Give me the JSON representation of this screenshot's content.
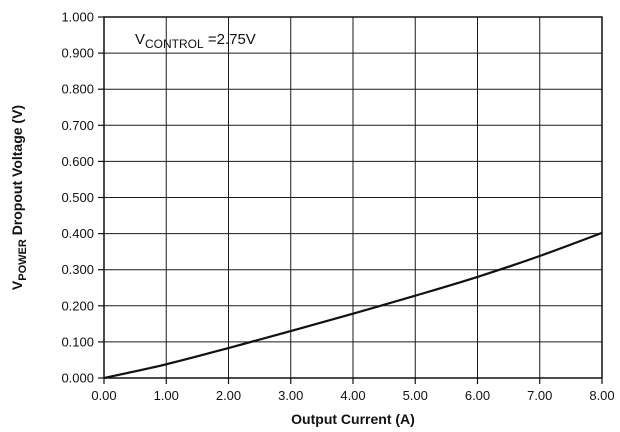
{
  "chart_data": {
    "type": "line",
    "title": "",
    "xlabel": "Output Current (A)",
    "ylabel": {
      "prefix": "V",
      "subscript": "POWER",
      "suffix": " Dropout Voltage (V)"
    },
    "annotation": {
      "prefix": "V",
      "subscript": "CONTROL",
      "suffix": " =2.75V"
    },
    "xlim": [
      0,
      8
    ],
    "ylim": [
      0,
      1.0
    ],
    "x_ticks": [
      "0.00",
      "1.00",
      "2.00",
      "3.00",
      "4.00",
      "5.00",
      "6.00",
      "7.00",
      "8.00"
    ],
    "y_ticks": [
      "0.000",
      "0.100",
      "0.200",
      "0.300",
      "0.400",
      "0.500",
      "0.600",
      "0.700",
      "0.800",
      "0.900",
      "1.000"
    ],
    "grid": true,
    "legend": "none",
    "line_color": "#111111",
    "series": [
      {
        "x": [
          0,
          1,
          2,
          3,
          4,
          5,
          6,
          7,
          8
        ],
        "values": [
          0.0,
          0.038,
          0.083,
          0.13,
          0.178,
          0.228,
          0.28,
          0.338,
          0.402
        ]
      }
    ]
  }
}
